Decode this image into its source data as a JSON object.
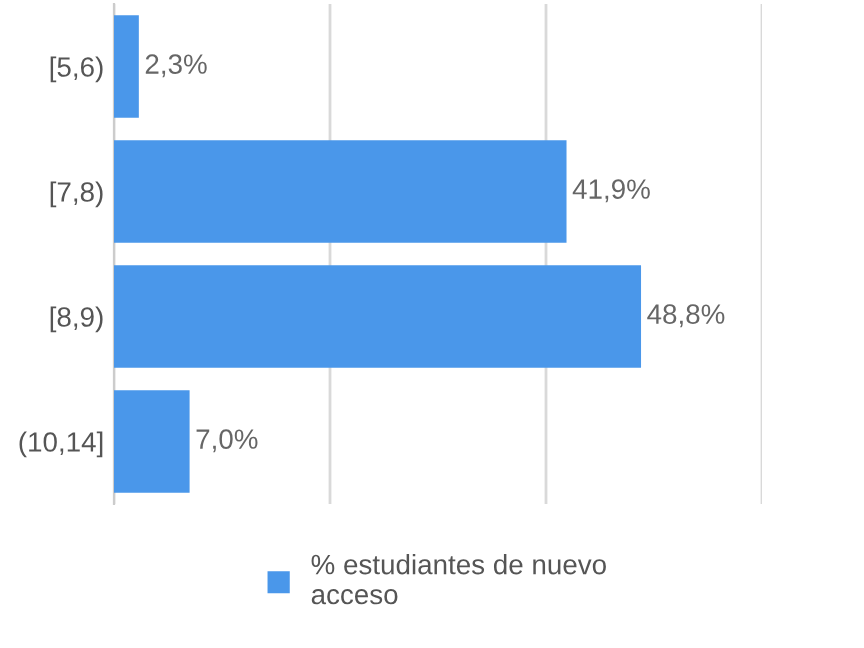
{
  "chart_data": {
    "type": "bar",
    "orientation": "horizontal",
    "categories": [
      "[5,6)",
      "[7,8)",
      "[8,9)",
      "(10,14]"
    ],
    "series": [
      {
        "name": "% estudiantes de nuevo acceso",
        "color": "#4a97ea",
        "values": [
          2.3,
          41.9,
          48.8,
          7.0
        ],
        "value_labels": [
          "2,3%",
          "41,9%",
          "48,8%",
          "7,0%"
        ]
      }
    ],
    "xlim": [
      0,
      60
    ],
    "xticks": [
      {
        "value": 0,
        "label": null
      },
      {
        "value": 20,
        "label": null
      },
      {
        "value": 40,
        "label": null
      },
      {
        "value": 60,
        "label": null
      }
    ],
    "grid": "x",
    "tick_labels": "y",
    "legend": "bottom"
  }
}
